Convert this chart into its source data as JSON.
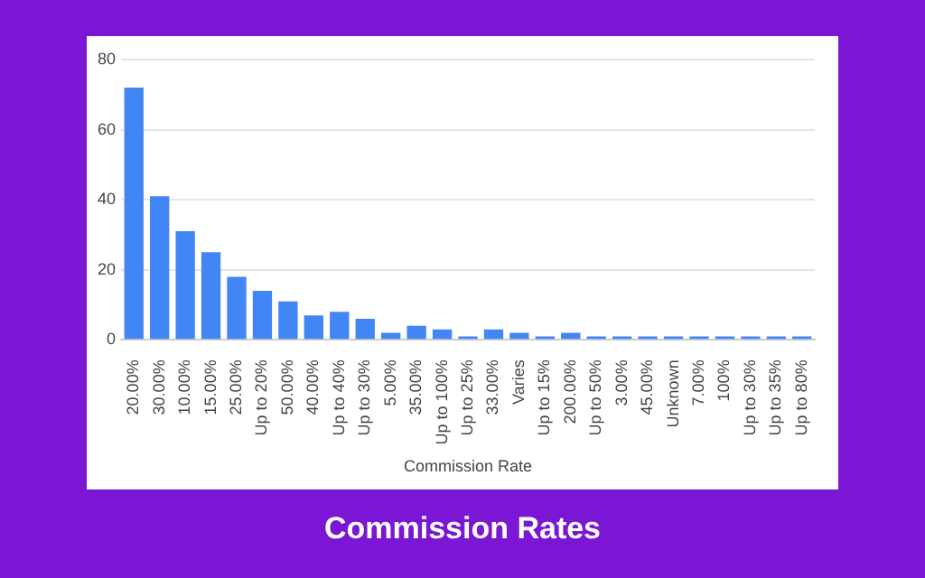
{
  "chart_data": {
    "type": "bar",
    "title": "Commission Rates",
    "xlabel": "Commission Rate",
    "categories": [
      "20.00%",
      "30.00%",
      "10.00%",
      "15.00%",
      "25.00%",
      "Up to 20%",
      "50.00%",
      "40.00%",
      "Up to 40%",
      "Up to 30%",
      "5.00%",
      "35.00%",
      "Up to 100%",
      "Up to 25%",
      "33.00%",
      "Varies",
      "Up to 15%",
      "200.00%",
      "Up to 50%",
      "3.00%",
      "45.00%",
      "Unknown",
      "7.00%",
      "100%",
      "Up to 30%",
      "Up to 35%",
      "Up to 80%"
    ],
    "values": [
      72,
      41,
      31,
      25,
      18,
      14,
      11,
      7,
      8,
      6,
      2,
      4,
      3,
      1,
      3,
      2,
      1,
      2,
      1,
      1,
      1,
      1,
      1,
      1,
      1,
      1,
      1
    ],
    "color": "#4285f4",
    "ylim": [
      0,
      80
    ],
    "yticks": [
      0,
      20,
      40,
      60,
      80
    ],
    "grid": "y",
    "legend": false
  }
}
